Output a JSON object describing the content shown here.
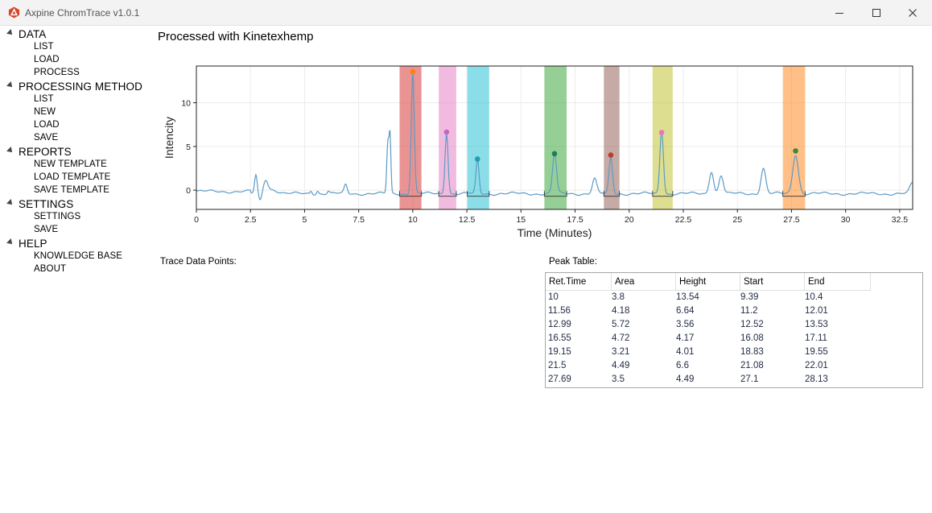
{
  "window": {
    "title": "Axpine ChromTrace v1.0.1",
    "icon": "axpine-logo-icon",
    "controls": [
      "minimize-icon",
      "maximize-icon",
      "close-icon"
    ]
  },
  "nav": {
    "groups": [
      {
        "label": "DATA",
        "items": [
          "LIST",
          "LOAD",
          "PROCESS"
        ]
      },
      {
        "label": "PROCESSING METHOD",
        "items": [
          "LIST",
          "NEW",
          "LOAD",
          "SAVE"
        ]
      },
      {
        "label": "REPORTS",
        "items": [
          "NEW TEMPLATE",
          "LOAD TEMPLATE",
          "SAVE TEMPLATE"
        ]
      },
      {
        "label": "SETTINGS",
        "items": [
          "SETTINGS",
          "SAVE"
        ]
      },
      {
        "label": "HELP",
        "items": [
          "KNOWLEDGE BASE",
          "ABOUT"
        ]
      }
    ]
  },
  "page": {
    "title": "Processed with Kinetexhemp",
    "trace_label": "Trace Data Points:",
    "peak_label": "Peak Table:"
  },
  "chart_data": {
    "type": "line",
    "xlabel": "Time (Minutes)",
    "ylabel": "Intencity",
    "xlim": [
      0,
      33.1
    ],
    "ylim": [
      -2.2,
      14.2
    ],
    "xticks": [
      "0",
      "2.5",
      "5",
      "7.5",
      "10",
      "12.5",
      "15",
      "17.5",
      "20",
      "22.5",
      "25",
      "27.5",
      "30",
      "32.5"
    ],
    "yticks": [
      "0",
      "5",
      "10"
    ],
    "grid": true,
    "line_color": "#5b9bc6",
    "trace": {
      "baseline": -0.4,
      "bumps": [
        [
          2.75,
          2.1,
          0.06
        ],
        [
          2.95,
          -0.9,
          0.07
        ],
        [
          3.2,
          1.4,
          0.1
        ],
        [
          3.5,
          0.5,
          0.25
        ],
        [
          5.3,
          0.35,
          0.05
        ],
        [
          5.6,
          0.35,
          0.05
        ],
        [
          6.1,
          0.3,
          0.05
        ],
        [
          6.9,
          1.0,
          0.07
        ],
        [
          8.85,
          5.9,
          0.05
        ],
        [
          8.95,
          6.3,
          0.04
        ],
        [
          10.0,
          13.9,
          0.07
        ],
        [
          11.56,
          7.0,
          0.07
        ],
        [
          12.99,
          3.8,
          0.07
        ],
        [
          16.55,
          4.6,
          0.09
        ],
        [
          18.4,
          1.7,
          0.1
        ],
        [
          19.15,
          4.1,
          0.08
        ],
        [
          21.5,
          7.4,
          0.08
        ],
        [
          23.8,
          2.6,
          0.1
        ],
        [
          24.25,
          2.1,
          0.1
        ],
        [
          26.2,
          2.9,
          0.11
        ],
        [
          27.69,
          4.5,
          0.13
        ],
        [
          33.1,
          1.2,
          0.12
        ]
      ]
    },
    "peaks": [
      {
        "rt": 10,
        "start": 9.39,
        "end": 10.4,
        "height": 13.54,
        "color": "#d62728",
        "marker": "#ff7f0e"
      },
      {
        "rt": 11.56,
        "start": 11.2,
        "end": 12.01,
        "height": 6.64,
        "color": "#e377c2",
        "marker": "#c266c9"
      },
      {
        "rt": 12.99,
        "start": 12.52,
        "end": 13.53,
        "height": 3.56,
        "color": "#17becf",
        "marker": "#1f9fb3"
      },
      {
        "rt": 16.55,
        "start": 16.08,
        "end": 17.11,
        "height": 4.17,
        "color": "#2ca02c",
        "marker": "#1a7f5f"
      },
      {
        "rt": 19.15,
        "start": 18.83,
        "end": 19.55,
        "height": 4.01,
        "color": "#8c564b",
        "marker": "#c0392b"
      },
      {
        "rt": 21.5,
        "start": 21.08,
        "end": 22.01,
        "height": 6.6,
        "color": "#bcbd22",
        "marker": "#e377c2"
      },
      {
        "rt": 27.69,
        "start": 27.1,
        "end": 28.13,
        "height": 4.49,
        "color": "#ff7f0e",
        "marker": "#3a8a3a"
      }
    ]
  },
  "peak_table": {
    "columns": [
      "Ret.Time",
      "Area",
      "Height",
      "Start",
      "End"
    ],
    "rows": [
      [
        "10",
        "3.8",
        "13.54",
        "9.39",
        "10.4"
      ],
      [
        "11.56",
        "4.18",
        "6.64",
        "11.2",
        "12.01"
      ],
      [
        "12.99",
        "5.72",
        "3.56",
        "12.52",
        "13.53"
      ],
      [
        "16.55",
        "4.72",
        "4.17",
        "16.08",
        "17.11"
      ],
      [
        "19.15",
        "3.21",
        "4.01",
        "18.83",
        "19.55"
      ],
      [
        "21.5",
        "4.49",
        "6.6",
        "21.08",
        "22.01"
      ],
      [
        "27.69",
        "3.5",
        "4.49",
        "27.1",
        "28.13"
      ]
    ]
  }
}
